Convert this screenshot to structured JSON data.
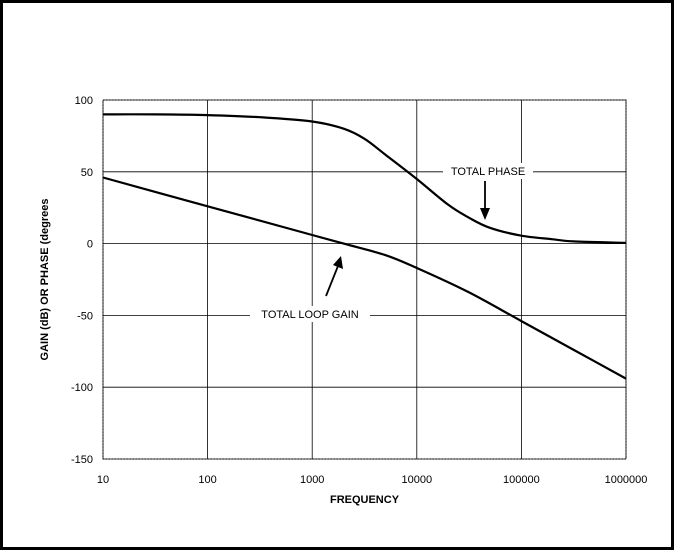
{
  "chart_data": {
    "type": "line",
    "xscale": "log",
    "xlim": [
      10,
      1000000
    ],
    "ylim": [
      -150,
      100
    ],
    "x_ticks": [
      "10",
      "100",
      "1000",
      "10000",
      "100000",
      "1000000"
    ],
    "y_ticks": [
      "100",
      "50",
      "0",
      "-50",
      "-100",
      "-150"
    ],
    "xlabel": "FREQUENCY",
    "ylabel": "GAIN (dB) OR PHASE (degrees",
    "grid": true,
    "series": [
      {
        "name": "TOTAL PHASE",
        "x": [
          10,
          31.6,
          100,
          316,
          1000,
          2000,
          3162,
          5000,
          10000,
          20000,
          31623,
          50000,
          100000,
          200000,
          316228,
          1000000
        ],
        "y": [
          90,
          90,
          89.5,
          88,
          85,
          80,
          73,
          62,
          45,
          27,
          18,
          11,
          5.5,
          3,
          1.5,
          0.5
        ]
      },
      {
        "name": "TOTAL LOOP GAIN",
        "x": [
          10,
          100,
          1000,
          2000,
          5000,
          10000,
          31623,
          100000,
          316228,
          1000000
        ],
        "y": [
          46,
          26,
          6,
          0,
          -8,
          -17,
          -34,
          -54,
          -74,
          -94
        ]
      }
    ],
    "annotations": [
      {
        "text": "TOTAL PHASE",
        "series": "TOTAL PHASE"
      },
      {
        "text": "TOTAL LOOP GAIN",
        "series": "TOTAL LOOP GAIN"
      }
    ]
  }
}
